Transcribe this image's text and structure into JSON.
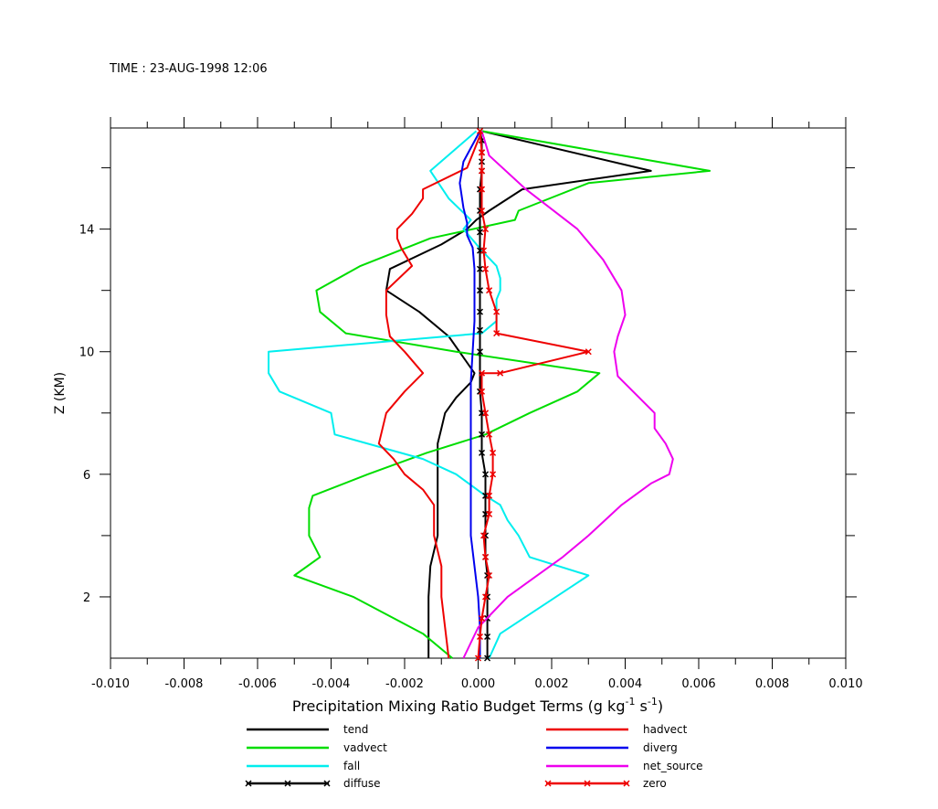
{
  "header": {
    "time_label": "TIME : 23-AUG-1998 12:06"
  },
  "chart_data": {
    "type": "line",
    "title": "",
    "xlabel": "Precipitation Mixing Ratio Budget Terms (g kg⁻¹ s⁻¹)",
    "ylabel": "Z (KM)",
    "xlim": [
      -0.01,
      0.01
    ],
    "ylim": [
      0,
      17.3
    ],
    "x_ticks": [
      -0.01,
      -0.008,
      -0.006,
      -0.004,
      -0.002,
      0.0,
      0.002,
      0.004,
      0.006,
      0.008,
      0.01
    ],
    "x_tick_labels": [
      "-0.010",
      "-0.008",
      "-0.006",
      "-0.004",
      "-0.002",
      "0.000",
      "0.002",
      "0.004",
      "0.006",
      "0.008",
      "0.010"
    ],
    "y_ticks": [
      2,
      6,
      10,
      14
    ],
    "y_tick_labels": [
      "2",
      "6",
      "10",
      "14"
    ],
    "grid": false,
    "legend_position": "bottom",
    "series": [
      {
        "name": "tend",
        "color": "#000000",
        "marker": "none",
        "x": [
          -0.00135,
          -0.00135,
          -0.00135,
          -0.00135,
          -0.00135,
          -0.0013,
          -0.0011,
          -0.0011,
          -0.0011,
          -0.0011,
          -0.0011,
          -0.001,
          -0.0009,
          -0.0006,
          -0.0002,
          -0.0001,
          -0.0008,
          -0.0016,
          -0.0025,
          -0.0024,
          -0.001,
          -0.0003,
          -5e-05,
          0.0003,
          0.0012,
          0.0047,
          0.0001
        ],
        "y": [
          0,
          0.5,
          1,
          1.5,
          2,
          3,
          4,
          5,
          6,
          6.5,
          7,
          7.5,
          8,
          8.5,
          9,
          9.3,
          10.5,
          11.3,
          12,
          12.7,
          13.5,
          14,
          14.3,
          14.6,
          15.3,
          15.9,
          17.2
        ]
      },
      {
        "name": "vadvect",
        "color": "#00dd00",
        "marker": "none",
        "x": [
          -0.0007,
          -0.0015,
          -0.0034,
          -0.005,
          -0.0043,
          -0.0046,
          -0.0046,
          -0.0045,
          -0.003,
          -0.0014,
          0.0002,
          0.0014,
          0.0027,
          0.0033,
          -0.0006,
          -0.0036,
          -0.0043,
          -0.0044,
          -0.0032,
          -0.0013,
          0.001,
          0.0011,
          0.003,
          0.0063,
          0.0001
        ],
        "y": [
          0,
          0.8,
          2,
          2.7,
          3.3,
          4,
          4.9,
          5.3,
          6,
          6.7,
          7.3,
          8,
          8.7,
          9.3,
          10,
          10.6,
          11.3,
          12,
          12.8,
          13.7,
          14.3,
          14.6,
          15.5,
          15.9,
          17.2
        ]
      },
      {
        "name": "fall",
        "color": "#00eeee",
        "marker": "none",
        "x": [
          0.0003,
          0.0006,
          0.003,
          0.0014,
          0.0011,
          0.0008,
          0.0006,
          0.0002,
          -0.0006,
          -0.0015,
          -0.0039,
          -0.004,
          -0.0054,
          -0.0057,
          -0.0057,
          0.0001,
          0.0005,
          0.0005,
          0.0006,
          0.0006,
          0.0005,
          0.0001,
          -0.0004,
          -0.0002,
          -0.0008,
          -0.0013,
          -5e-05
        ],
        "y": [
          0,
          0.8,
          2.7,
          3.3,
          4,
          4.5,
          5,
          5.3,
          6,
          6.5,
          7.3,
          8,
          8.7,
          9.3,
          10,
          10.6,
          11,
          11.7,
          12,
          12.4,
          12.8,
          13.3,
          14,
          14.3,
          15,
          15.9,
          17.2
        ]
      },
      {
        "name": "diffuse",
        "color": "#000000",
        "marker": "x",
        "x": [
          0.00025,
          0.00025,
          0.00025,
          0.00025,
          0.00025,
          0.0002,
          0.0002,
          0.0002,
          0.0002,
          0.0002,
          0.0001,
          0.0001,
          0.0001,
          5e-05,
          5e-05,
          5e-05,
          5e-05,
          5e-05,
          5e-05,
          5e-05,
          5e-05,
          5e-05,
          5e-05,
          0.0001,
          0.0001,
          0.0001,
          0.0001,
          5e-05
        ],
        "y": [
          0,
          0.7,
          1.3,
          2,
          2.7,
          3.3,
          4,
          4.7,
          5.3,
          6,
          6.7,
          7.3,
          8,
          8.7,
          10,
          10.7,
          11.3,
          12,
          12.7,
          13.3,
          13.9,
          14.6,
          15.3,
          15.9,
          16.2,
          16.5,
          16.9,
          17.2
        ]
      },
      {
        "name": "hadvect",
        "color": "#ee0000",
        "marker": "none",
        "x": [
          -0.0008,
          -0.0009,
          -0.001,
          -0.001,
          -0.0012,
          -0.0012,
          -0.0012,
          -0.0015,
          -0.002,
          -0.0023,
          -0.0027,
          -0.0025,
          -0.002,
          -0.0015,
          -0.002,
          -0.0024,
          -0.0025,
          -0.0025,
          -0.0018,
          -0.0021,
          -0.0022,
          -0.0022,
          -0.0018,
          -0.0015,
          -0.0015,
          -0.0003,
          0.0001
        ],
        "y": [
          0,
          1,
          2,
          3,
          4,
          4.5,
          5,
          5.5,
          6,
          6.5,
          7,
          8,
          8.7,
          9.3,
          10,
          10.5,
          11.2,
          12,
          12.8,
          13.4,
          13.7,
          14,
          14.5,
          15,
          15.3,
          16,
          17.2
        ]
      },
      {
        "name": "diverg",
        "color": "#0000ee",
        "marker": "none",
        "x": [
          5e-05,
          5e-05,
          0.0,
          -0.0001,
          -0.0002,
          -0.0002,
          -0.0002,
          -0.0002,
          -0.0002,
          -0.0002,
          -0.00015,
          -0.0001,
          -0.0001,
          -0.0001,
          -0.00015,
          -0.0003,
          -0.0003,
          -0.0004,
          -0.0005,
          -0.0004,
          5e-05
        ],
        "y": [
          0,
          1,
          2,
          3,
          4,
          5,
          6,
          7,
          8,
          9,
          10,
          11,
          12,
          12.7,
          13.4,
          13.8,
          14.2,
          14.7,
          15.5,
          16.2,
          17.2
        ]
      },
      {
        "name": "net_source",
        "color": "#ee00ee",
        "marker": "none",
        "x": [
          -0.0004,
          0.0,
          0.0008,
          0.0023,
          0.003,
          0.0039,
          0.0047,
          0.0052,
          0.0053,
          0.0051,
          0.0048,
          0.0048,
          0.0038,
          0.0037,
          0.0038,
          0.004,
          0.0039,
          0.0034,
          0.0027,
          0.0013,
          0.0003,
          0.0001
        ],
        "y": [
          0,
          1,
          2,
          3.3,
          4,
          5,
          5.7,
          6,
          6.5,
          7,
          7.5,
          8,
          9.2,
          10,
          10.5,
          11.2,
          12,
          13,
          14,
          15.3,
          16.4,
          17.2
        ]
      },
      {
        "name": "zero",
        "color": "#ee0000",
        "marker": "x",
        "x": [
          0.0,
          5e-05,
          0.0001,
          0.0002,
          0.0003,
          0.0002,
          0.00015,
          0.0003,
          0.0003,
          0.0004,
          0.0004,
          0.0003,
          0.0002,
          0.0001,
          0.0001,
          0.0006,
          0.003,
          0.0005,
          0.0005,
          0.0003,
          0.0002,
          0.00015,
          0.0002,
          0.0001,
          0.0001,
          0.0001,
          0.0001,
          5e-05
        ],
        "y": [
          0,
          0.7,
          1.3,
          2,
          2.7,
          3.3,
          4,
          4.7,
          5.3,
          6,
          6.7,
          7.3,
          8,
          8.7,
          9.3,
          9.3,
          10,
          10.6,
          11.3,
          12,
          12.7,
          13.3,
          14,
          14.6,
          15.3,
          15.9,
          16.5,
          17.2
        ]
      }
    ]
  }
}
